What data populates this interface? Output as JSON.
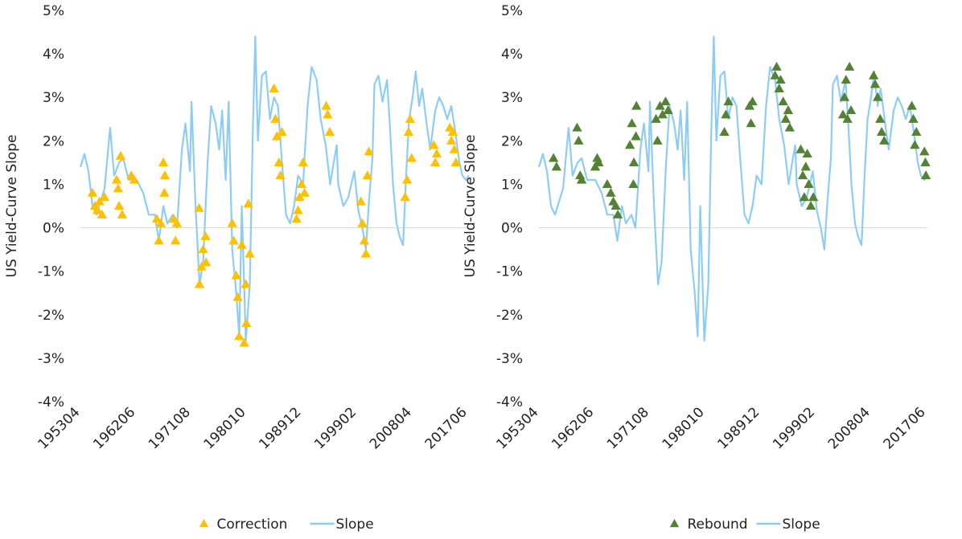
{
  "chart_data": [
    {
      "type": "line",
      "y_label": "US Yield-Curve Slope",
      "legend": "bottom",
      "xlim": [
        "195304",
        "201709"
      ],
      "xticks": [
        "195304",
        "196206",
        "197108",
        "198010",
        "198912",
        "199902",
        "200804",
        "201706"
      ],
      "ylim": [
        -4,
        5
      ],
      "yticks": [
        {
          "value": -4,
          "label": "-4%"
        },
        {
          "value": -3,
          "label": "-3%"
        },
        {
          "value": -2,
          "label": "-2%"
        },
        {
          "value": -1,
          "label": "-1%"
        },
        {
          "value": 0,
          "label": "0%"
        },
        {
          "value": 1,
          "label": "1%"
        },
        {
          "value": 2,
          "label": "2%"
        },
        {
          "value": 3,
          "label": "3%"
        },
        {
          "value": 4,
          "label": "4%"
        },
        {
          "value": 5,
          "label": "5%"
        }
      ],
      "series": [
        {
          "name": "Correction",
          "type": "scatter",
          "color": "#FFC000",
          "x": [
            "195504",
            "195509",
            "195602",
            "195606",
            "195611",
            "195704",
            "195904",
            "195907",
            "195909",
            "195912",
            "196003",
            "196109",
            "196203",
            "196512",
            "196604",
            "196608",
            "196701",
            "196703",
            "196704",
            "196810",
            "196901",
            "196904",
            "197212",
            "197301",
            "197305",
            "197308",
            "197401",
            "197402",
            "197806",
            "197809",
            "197902",
            "197905",
            "197908",
            "198001",
            "198006",
            "198009",
            "198010",
            "198102",
            "198105",
            "198505",
            "198508",
            "198511",
            "198603",
            "198606",
            "198609",
            "198902",
            "198905",
            "198908",
            "198912",
            "199003",
            "199006",
            "199401",
            "199404",
            "199408",
            "199910",
            "200001",
            "200005",
            "200008",
            "200011",
            "200102",
            "200702",
            "200706",
            "200709",
            "200712",
            "200803",
            "201111",
            "201202",
            "201205",
            "201407",
            "201410",
            "201501",
            "201504",
            "201507"
          ],
          "values": [
            0.8,
            0.5,
            0.4,
            0.6,
            0.3,
            0.7,
            1.1,
            0.9,
            0.5,
            1.65,
            0.3,
            1.2,
            1.1,
            0.2,
            -0.3,
            0.1,
            1.5,
            0.8,
            1.2,
            0.2,
            -0.3,
            0.1,
            0.45,
            -1.3,
            -0.9,
            -0.5,
            -0.2,
            -0.8,
            0.1,
            -0.3,
            -1.1,
            -1.6,
            -2.5,
            -0.4,
            -2.65,
            -1.3,
            -2.2,
            0.55,
            -0.6,
            3.2,
            2.5,
            2.1,
            1.5,
            1.2,
            2.2,
            0.2,
            0.4,
            0.7,
            1.0,
            1.5,
            0.8,
            2.8,
            2.6,
            2.2,
            0.6,
            0.1,
            -0.3,
            -0.6,
            1.2,
            1.75,
            0.7,
            1.1,
            2.2,
            2.5,
            1.6,
            1.9,
            1.5,
            1.7,
            2.3,
            2.0,
            2.2,
            1.8,
            1.5
          ]
        },
        {
          "name": "Slope",
          "color": "#8DCDF5",
          "x": [
            "195304",
            "195312",
            "195408",
            "195504",
            "195512",
            "195608",
            "195704",
            "195803",
            "195811",
            "195909",
            "196005",
            "196104",
            "196208",
            "196309",
            "196408",
            "196508",
            "196604",
            "196701",
            "196709",
            "196808",
            "196904",
            "197002",
            "197009",
            "197106",
            "197109",
            "197205",
            "197301",
            "197308",
            "197405",
            "197412",
            "197509",
            "197604",
            "197610",
            "197705",
            "197711",
            "197806",
            "197902",
            "197908",
            "198001",
            "198009",
            "198105",
            "198111",
            "198204",
            "198209",
            "198305",
            "198401",
            "198409",
            "198505",
            "198601",
            "198609",
            "198705",
            "198801",
            "198809",
            "198905",
            "199003",
            "199012",
            "199108",
            "199206",
            "199302",
            "199312",
            "199409",
            "199504",
            "199510",
            "199601",
            "199611",
            "199709",
            "199809",
            "199905",
            "200001",
            "200008",
            "200102",
            "200109",
            "200201",
            "200209",
            "200305",
            "200402",
            "200408",
            "200502",
            "200509",
            "200603",
            "200610",
            "200704",
            "200710",
            "200805",
            "200811",
            "200906",
            "200912",
            "201010",
            "201104",
            "201202",
            "201210",
            "201306",
            "201402",
            "201410",
            "201506",
            "201602",
            "201608",
            "201703",
            "201709"
          ],
          "values": [
            1.4,
            1.7,
            1.3,
            0.5,
            0.3,
            0.6,
            0.9,
            2.3,
            1.2,
            1.5,
            1.6,
            1.1,
            1.1,
            0.8,
            0.3,
            0.3,
            -0.3,
            0.5,
            0.1,
            0.3,
            0,
            1.8,
            2.4,
            1.3,
            2.9,
            0.5,
            -1.3,
            -0.8,
            1.5,
            2.8,
            2.4,
            1.8,
            2.7,
            1.1,
            2.9,
            -0.5,
            -1.5,
            -2.5,
            0.5,
            -2.6,
            -1.3,
            2.2,
            4.4,
            2.0,
            3.5,
            3.6,
            2.5,
            3.0,
            2.8,
            1.5,
            0.3,
            0.1,
            0.5,
            1.2,
            1.0,
            2.8,
            3.7,
            3.4,
            2.5,
            1.9,
            1.0,
            1.5,
            1.9,
            1.0,
            0.5,
            0.7,
            1.3,
            0.4,
            0,
            -0.5,
            0.6,
            1.6,
            3.3,
            3.5,
            2.9,
            3.4,
            2.3,
            1.0,
            0.1,
            -0.2,
            -0.4,
            1.2,
            2.5,
            3.0,
            3.6,
            2.8,
            3.2,
            2.3,
            1.8,
            2.7,
            3.0,
            2.8,
            2.5,
            2.8,
            2.2,
            1.5,
            1.2,
            1.1,
            1.2
          ]
        }
      ]
    },
    {
      "type": "line",
      "y_label": "US Yield-Curve Slope",
      "legend": "bottom",
      "xlim": [
        "195304",
        "201709"
      ],
      "xticks": [
        "195304",
        "196206",
        "197108",
        "198010",
        "198912",
        "199902",
        "200804",
        "201706"
      ],
      "ylim": [
        -4,
        5
      ],
      "yticks": [
        {
          "value": -4,
          "label": "-4%"
        },
        {
          "value": -3,
          "label": "-3%"
        },
        {
          "value": -2,
          "label": "-2%"
        },
        {
          "value": -1,
          "label": "-1%"
        },
        {
          "value": 0,
          "label": "0%"
        },
        {
          "value": 1,
          "label": "1%"
        },
        {
          "value": 2,
          "label": "2%"
        },
        {
          "value": 3,
          "label": "3%"
        },
        {
          "value": 4,
          "label": "4%"
        },
        {
          "value": 5,
          "label": "5%"
        }
      ],
      "series": [
        {
          "name": "Rebound",
          "type": "scatter",
          "color": "#548235",
          "x": [
            "195509",
            "195603",
            "195908",
            "195911",
            "196002",
            "196005",
            "196208",
            "196212",
            "196303",
            "196408",
            "196503",
            "196508",
            "196601",
            "196605",
            "196805",
            "196809",
            "196812",
            "196901",
            "196905",
            "196906",
            "197209",
            "197212",
            "197305",
            "197310",
            "197404",
            "197409",
            "198401",
            "198404",
            "198409",
            "198803",
            "198806",
            "198809",
            "199206",
            "199209",
            "199302",
            "199305",
            "199310",
            "199403",
            "199408",
            "199411",
            "199609",
            "199701",
            "199704",
            "199707",
            "199710",
            "199801",
            "199805",
            "199810",
            "200309",
            "200312",
            "200403",
            "200406",
            "200410",
            "200501",
            "200810",
            "200901",
            "200906",
            "200911",
            "201002",
            "201007",
            "201502",
            "201505",
            "201508",
            "201511",
            "201703",
            "201705",
            "201706"
          ],
          "values": [
            1.6,
            1.4,
            2.3,
            2.0,
            1.2,
            1.1,
            1.4,
            1.6,
            1.5,
            1.0,
            0.8,
            0.6,
            0.5,
            0.3,
            1.9,
            2.4,
            1.0,
            1.5,
            2.1,
            2.8,
            2.5,
            2.0,
            2.8,
            2.6,
            2.9,
            2.7,
            2.2,
            2.6,
            2.9,
            2.8,
            2.4,
            2.9,
            3.5,
            3.7,
            3.2,
            3.4,
            2.9,
            2.5,
            2.7,
            2.3,
            1.8,
            1.2,
            0.7,
            1.4,
            1.7,
            1.0,
            0.5,
            0.7,
            2.6,
            3.0,
            3.4,
            2.5,
            3.7,
            2.7,
            3.5,
            3.3,
            3.0,
            2.5,
            2.2,
            2.0,
            2.8,
            2.5,
            1.9,
            2.2,
            1.75,
            1.5,
            1.2
          ]
        },
        {
          "name": "Slope",
          "color": "#8DCDF5",
          "x": [
            "195304",
            "195312",
            "195408",
            "195504",
            "195512",
            "195608",
            "195704",
            "195803",
            "195811",
            "195909",
            "196005",
            "196104",
            "196208",
            "196309",
            "196408",
            "196508",
            "196604",
            "196701",
            "196709",
            "196808",
            "196904",
            "197002",
            "197009",
            "197106",
            "197109",
            "197205",
            "197301",
            "197308",
            "197405",
            "197412",
            "197509",
            "197604",
            "197610",
            "197705",
            "197711",
            "197806",
            "197902",
            "197908",
            "198001",
            "198009",
            "198105",
            "198111",
            "198204",
            "198209",
            "198305",
            "198401",
            "198409",
            "198505",
            "198601",
            "198609",
            "198705",
            "198801",
            "198809",
            "198905",
            "199003",
            "199012",
            "199108",
            "199206",
            "199302",
            "199312",
            "199409",
            "199504",
            "199510",
            "199601",
            "199611",
            "199709",
            "199809",
            "199905",
            "200001",
            "200008",
            "200102",
            "200109",
            "200201",
            "200209",
            "200305",
            "200402",
            "200408",
            "200502",
            "200509",
            "200603",
            "200610",
            "200704",
            "200710",
            "200805",
            "200811",
            "200906",
            "200912",
            "201010",
            "201104",
            "201202",
            "201210",
            "201306",
            "201402",
            "201410",
            "201506",
            "201602",
            "201608",
            "201703",
            "201709"
          ],
          "values": [
            1.4,
            1.7,
            1.3,
            0.5,
            0.3,
            0.6,
            0.9,
            2.3,
            1.2,
            1.5,
            1.6,
            1.1,
            1.1,
            0.8,
            0.3,
            0.3,
            -0.3,
            0.5,
            0.1,
            0.3,
            0,
            1.8,
            2.4,
            1.3,
            2.9,
            0.5,
            -1.3,
            -0.8,
            1.5,
            2.8,
            2.4,
            1.8,
            2.7,
            1.1,
            2.9,
            -0.5,
            -1.5,
            -2.5,
            0.5,
            -2.6,
            -1.3,
            2.2,
            4.4,
            2.0,
            3.5,
            3.6,
            2.5,
            3.0,
            2.8,
            1.5,
            0.3,
            0.1,
            0.5,
            1.2,
            1.0,
            2.8,
            3.7,
            3.4,
            2.5,
            1.9,
            1.0,
            1.5,
            1.9,
            1.0,
            0.5,
            0.7,
            1.3,
            0.4,
            0,
            -0.5,
            0.6,
            1.6,
            3.3,
            3.5,
            2.9,
            3.4,
            2.3,
            1.0,
            0.1,
            -0.2,
            -0.4,
            1.2,
            2.5,
            3.0,
            3.6,
            2.8,
            3.2,
            2.3,
            1.8,
            2.7,
            3.0,
            2.8,
            2.5,
            2.8,
            2.2,
            1.5,
            1.2,
            1.1,
            1.2
          ]
        }
      ]
    }
  ]
}
